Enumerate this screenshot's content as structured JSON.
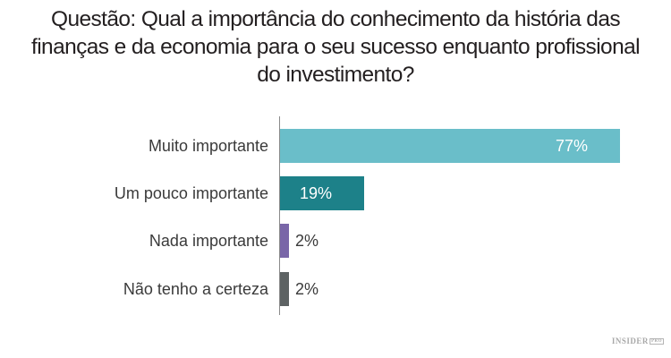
{
  "title": {
    "lines": [
      "Questão: Qual a importância do conhecimento da história das",
      "finanças e da economia para o seu sucesso enquanto profissional",
      "do investimento?"
    ]
  },
  "logo": {
    "text": "INSIDER",
    "badge": "PRO"
  },
  "chart_data": {
    "type": "bar",
    "orientation": "horizontal",
    "title": "Questão: Qual a importância do conhecimento da história das finanças e da economia para o seu sucesso enquanto profissional do investimento?",
    "xlabel": "",
    "ylabel": "",
    "categories": [
      "Muito importante",
      "Um pouco importante",
      "Nada importante",
      "Não tenho a certeza"
    ],
    "values": [
      77,
      19,
      2,
      2
    ],
    "labels": [
      "77%",
      "19%",
      "2%",
      "2%"
    ],
    "colors": [
      "#6abec9",
      "#1d8189",
      "#7966a8",
      "#5d6263"
    ],
    "unit": "%",
    "xlim": [
      0,
      100
    ],
    "grid": false,
    "legend": null
  }
}
